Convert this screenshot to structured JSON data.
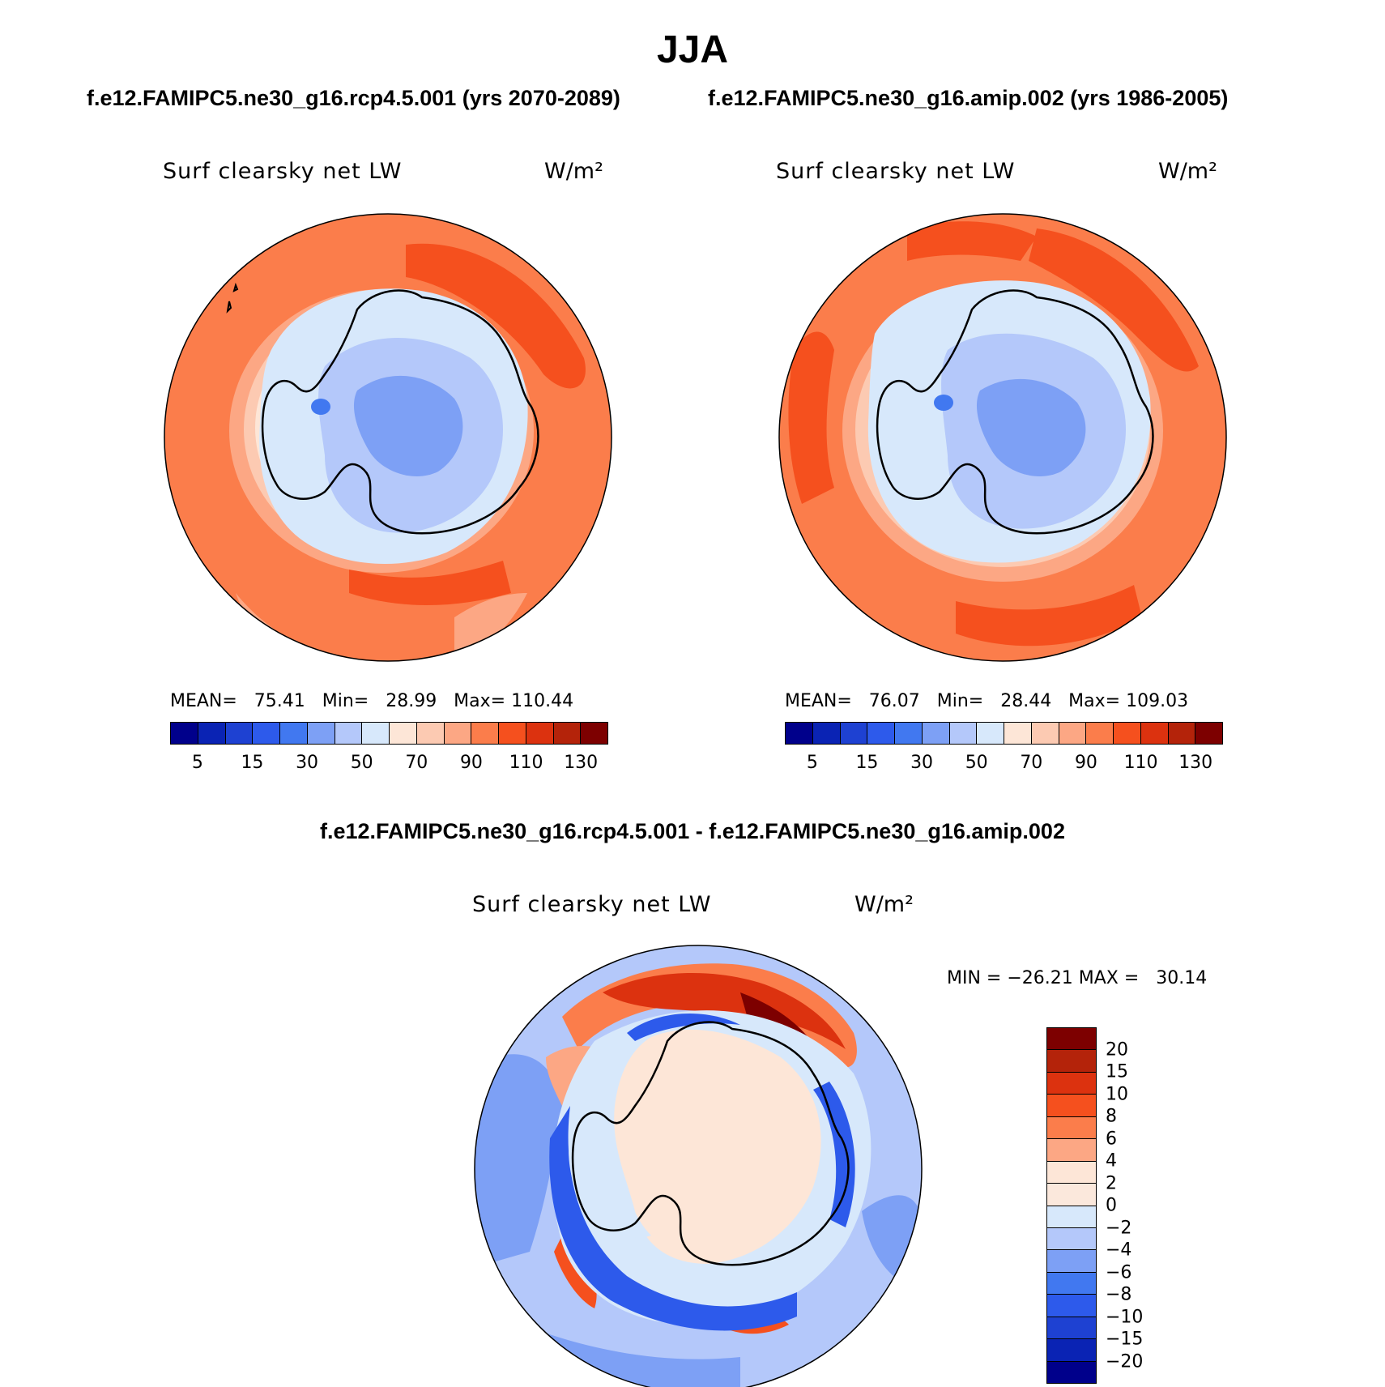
{
  "title": "JJA",
  "panels": [
    {
      "id": "rcp",
      "subtitle": "f.e12.FAMIPC5.ne30_g16.rcp4.5.001 (yrs 2070-2089)",
      "variable": "Surf clearsky net LW",
      "units": "W/m²",
      "stats": "MEAN=   75.41   Min=   28.99   Max= 110.44",
      "colorbar_ticks": [
        "5",
        "15",
        "30",
        "50",
        "70",
        "90",
        "110",
        "130"
      ]
    },
    {
      "id": "amip",
      "subtitle": "f.e12.FAMIPC5.ne30_g16.amip.002 (yrs 1986-2005)",
      "variable": "Surf clearsky net LW",
      "units": "W/m²",
      "stats": "MEAN=   76.07   Min=   28.44   Max= 109.03",
      "colorbar_ticks": [
        "5",
        "15",
        "30",
        "50",
        "70",
        "90",
        "110",
        "130"
      ]
    },
    {
      "id": "diff",
      "subtitle": "f.e12.FAMIPC5.ne30_g16.rcp4.5.001 - f.e12.FAMIPC5.ne30_g16.amip.002",
      "variable": "Surf clearsky net LW",
      "units": "W/m²",
      "stats": "MIN = −26.21 MAX =   30.14",
      "colorbar_ticks": [
        "20",
        "15",
        "10",
        "8",
        "6",
        "4",
        "2",
        "0",
        "−2",
        "−4",
        "−6",
        "−8",
        "−10",
        "−15",
        "−20"
      ]
    }
  ],
  "colors": {
    "abs_scale": [
      "#00008b",
      "#0a23b4",
      "#1e41d2",
      "#2d5aeb",
      "#4178f0",
      "#7da0f5",
      "#b4c8fa",
      "#d7e8fb",
      "#fde6d7",
      "#fccab2",
      "#fca784",
      "#fb7d4b",
      "#f5501e",
      "#dc320f",
      "#b4230a",
      "#7d0000"
    ],
    "diff_scale": [
      "#7d0000",
      "#b4230a",
      "#dc320f",
      "#f5501e",
      "#fb7d4b",
      "#fca784",
      "#fde6d7",
      "#fbe8dc",
      "#d7e8fb",
      "#b4c8fa",
      "#7da0f5",
      "#4178f0",
      "#2d5aeb",
      "#1e41d2",
      "#0a23b4",
      "#00008b"
    ]
  }
}
